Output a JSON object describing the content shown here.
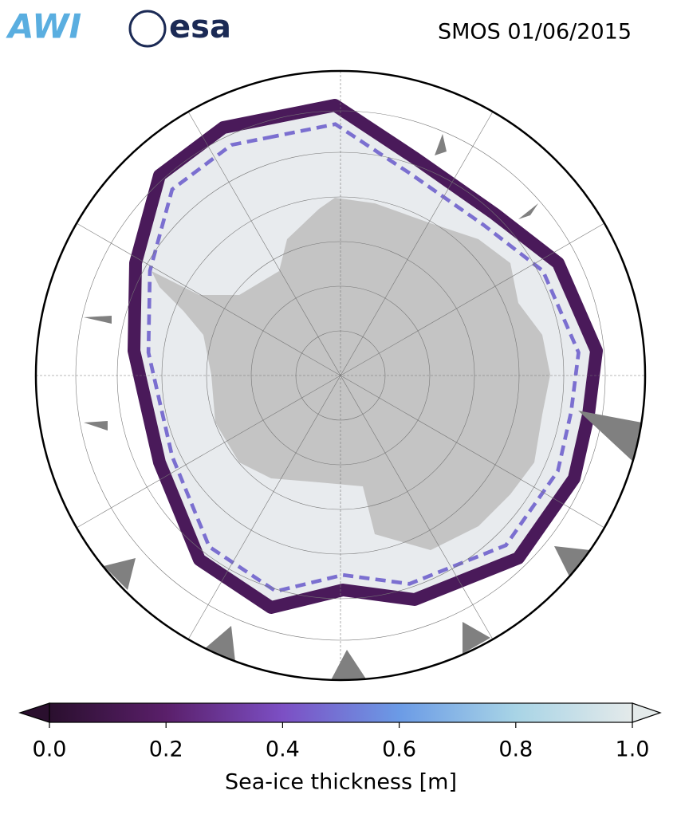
{
  "header": {
    "logos": [
      "AWI",
      "esa"
    ],
    "title": "SMOS 01/06/2015"
  },
  "colorbar": {
    "label": "Sea-ice thickness [m]",
    "lim": [
      0,
      1
    ],
    "ticks": [
      {
        "value": 0,
        "label": "0.0"
      },
      0.2,
      0.4,
      0.6,
      0.8,
      {
        "value": 1,
        "label": "1.0"
      }
    ],
    "colors": [
      "#2a0f2e",
      "#5a1f6a",
      "#7c4fc4",
      "#6b9be6",
      "#a8d4e6",
      "#e4eaea"
    ]
  }
}
